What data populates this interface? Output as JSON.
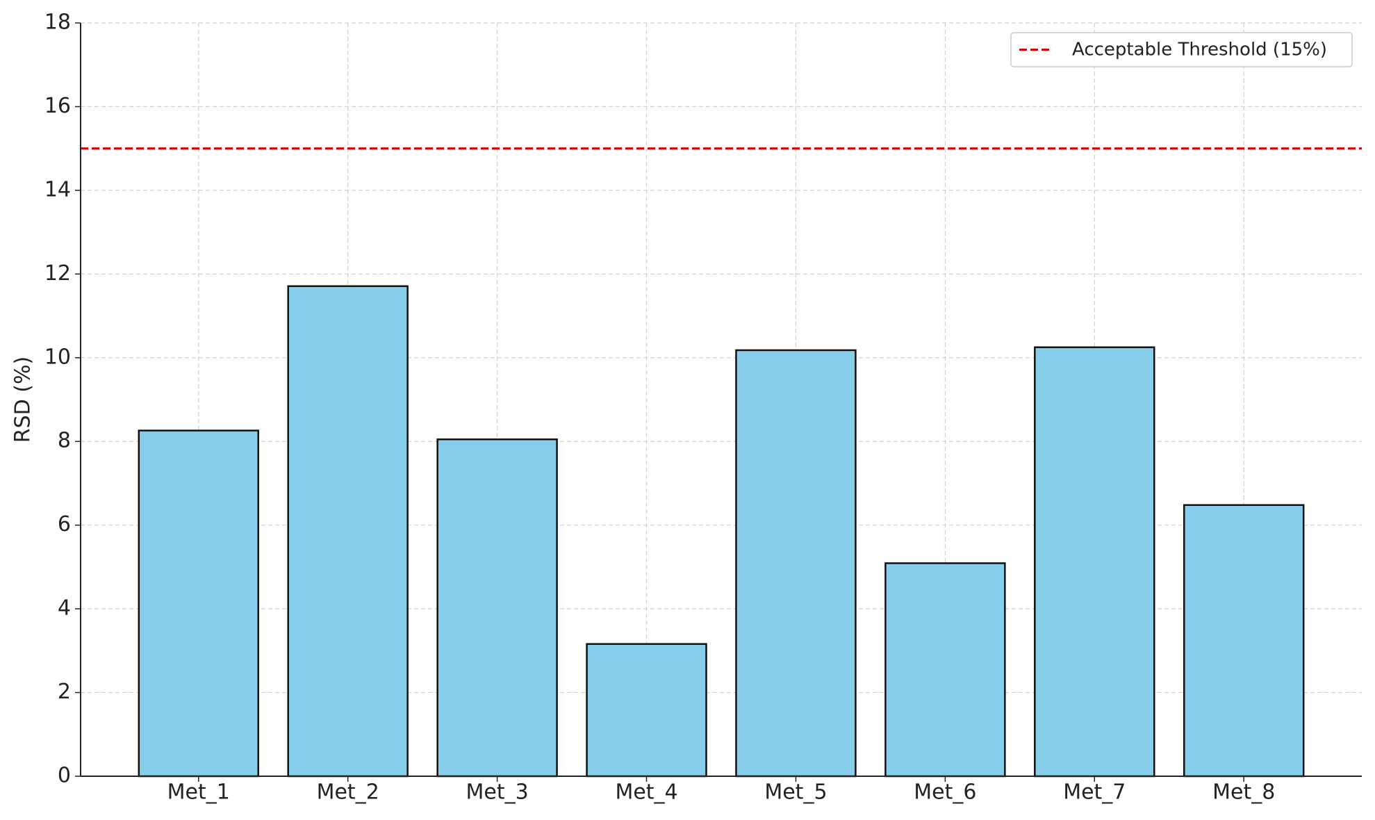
{
  "chart_data": {
    "type": "bar",
    "ylabel": "RSD (%)",
    "categories": [
      "Met_1",
      "Met_2",
      "Met_3",
      "Met_4",
      "Met_5",
      "Met_6",
      "Met_7",
      "Met_8"
    ],
    "values": [
      8.26,
      11.71,
      8.05,
      3.16,
      10.18,
      5.09,
      10.25,
      6.48
    ],
    "color": "#87ceeb",
    "ylim": [
      0,
      18
    ],
    "yticks": [
      0,
      2,
      4,
      6,
      8,
      10,
      12,
      14,
      16,
      18
    ],
    "grid": true,
    "threshold": {
      "value": 15,
      "label": "Acceptable Threshold (15%)",
      "color": "#dd0000"
    },
    "legend": "upper right"
  }
}
